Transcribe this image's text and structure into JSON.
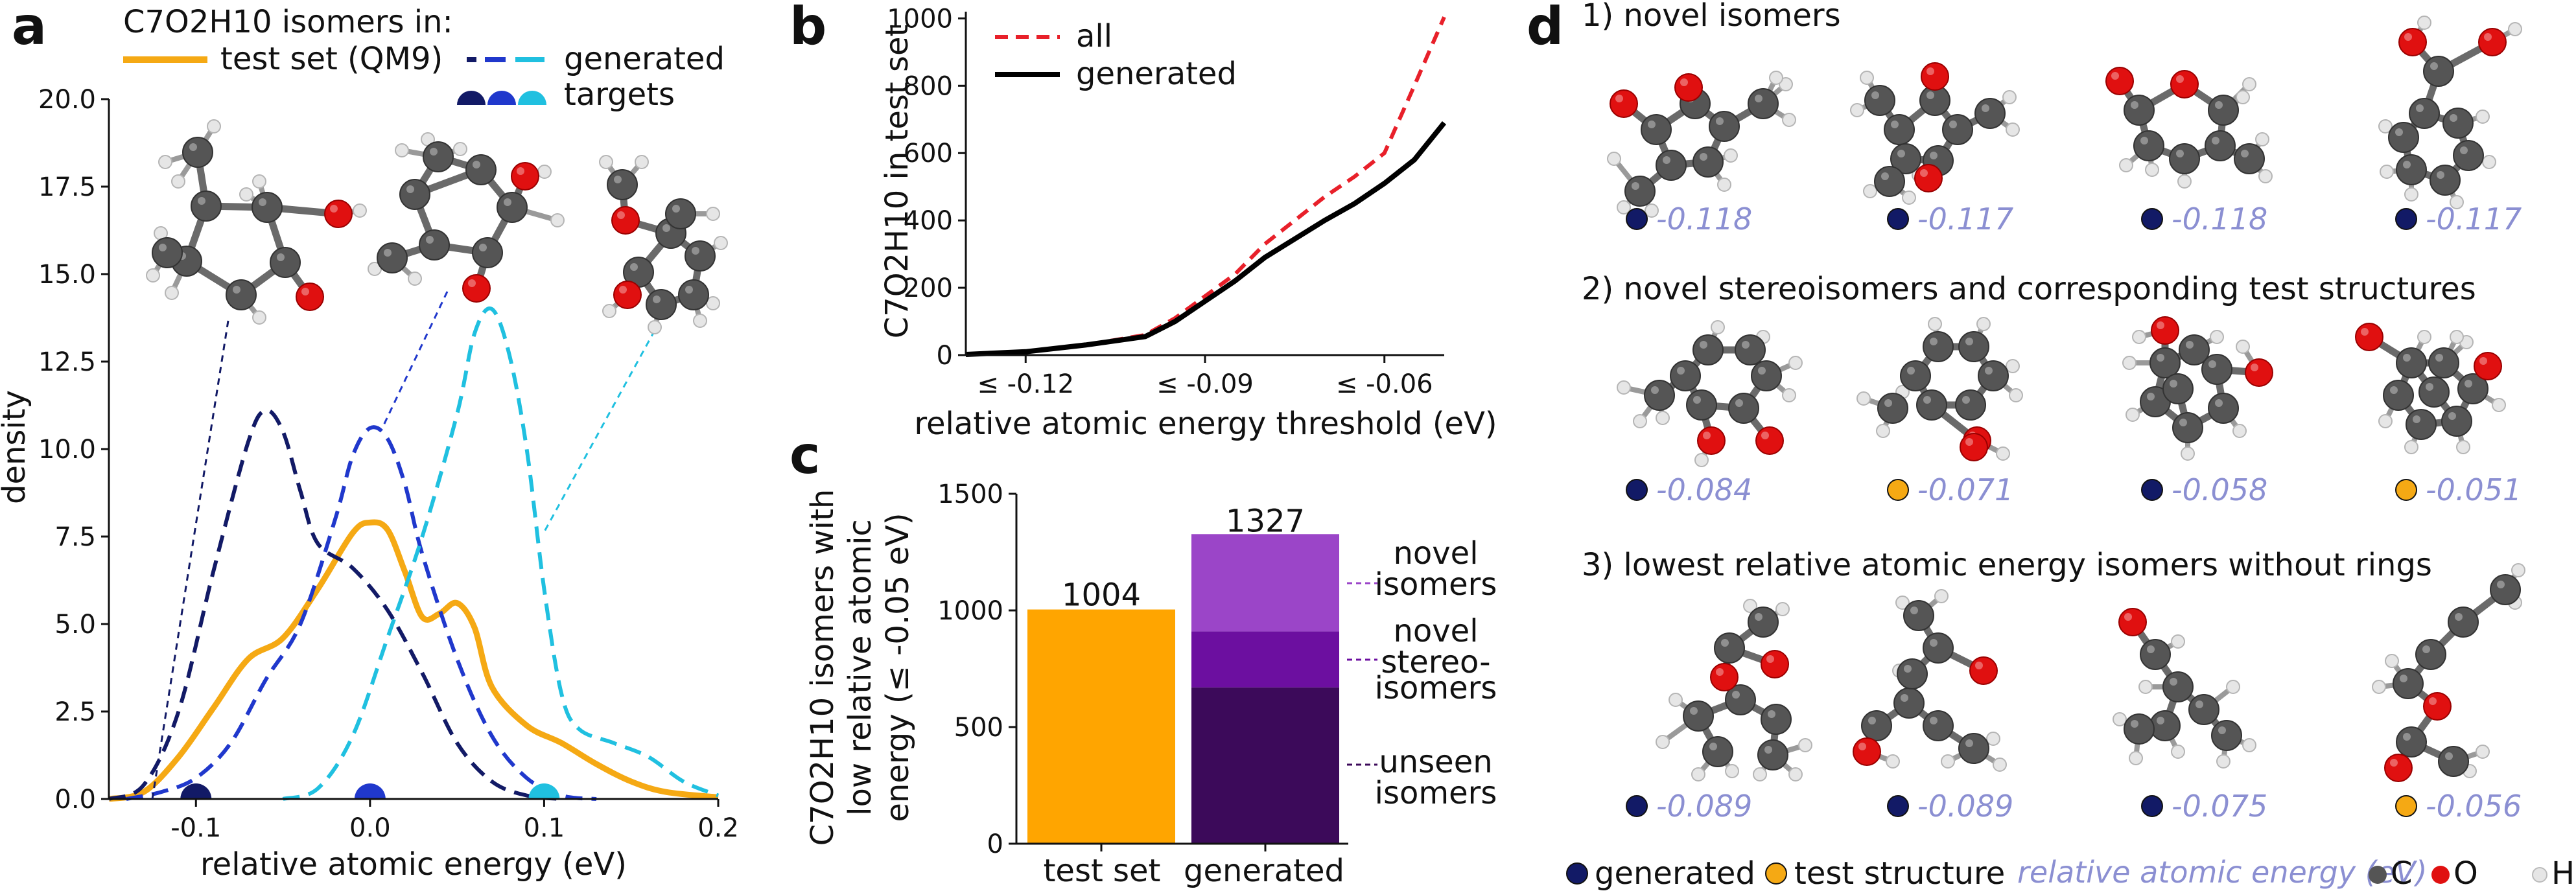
{
  "colors": {
    "test": "#f5a914",
    "t1": "#121a66",
    "t2": "#2038cc",
    "t3": "#20c0e0",
    "all": "#e8202a",
    "gen": "#000000",
    "gen_dot": "#121a66",
    "test_dot": "#f5a914",
    "energy": "#8b8fd2",
    "C": "#555555",
    "O": "#e01010",
    "H": "#e6e6e6",
    "bar_test": "#ffa500",
    "bar_novel": "#9b45c8",
    "bar_stereo": "#6c0fa0",
    "bar_unseen": "#3c0a5a"
  },
  "panel_a": {
    "letter": "a",
    "legend_title": "C7O2H10 isomers in:",
    "legend_items": [
      "test set (QM9)",
      "generated",
      "targets"
    ],
    "xlabel": "relative atomic energy (eV)",
    "ylabel": "density",
    "xticks": [
      "-0.1",
      "0.0",
      "0.1",
      "0.2"
    ],
    "yticks": [
      "0.0",
      "2.5",
      "5.0",
      "7.5",
      "10.0",
      "12.5",
      "15.0",
      "17.5",
      "20.0"
    ]
  },
  "panel_b": {
    "letter": "b",
    "ylabel": "C7O2H10 in test set",
    "xlabel": "relative atomic energy threshold (eV)",
    "xticks": [
      "≤ -0.12",
      "≤ -0.09",
      "≤ -0.06"
    ],
    "yticks": [
      "0",
      "200",
      "400",
      "600",
      "800",
      "1000"
    ],
    "legend": [
      "all",
      "generated"
    ]
  },
  "panel_c": {
    "letter": "c",
    "ylabel": [
      "C7O2H10 isomers with",
      "low relative atomic",
      "energy (≤ -0.05 eV)"
    ],
    "yticks": [
      "0",
      "500",
      "1000",
      "1500"
    ],
    "categories": [
      "test set",
      "generated"
    ],
    "value_labels": [
      "1004",
      "1327"
    ],
    "segment_labels": [
      [
        "novel",
        "isomers"
      ],
      [
        "novel",
        "stereo-",
        "isomers"
      ],
      [
        "unseen",
        "isomers"
      ]
    ]
  },
  "panel_d": {
    "letter": "d",
    "section1": "1) novel isomers",
    "section2": "2) novel stereoisomers and corresponding test structures",
    "section3": "3) lowest relative atomic energy isomers without rings",
    "row1_energies": [
      "-0.118",
      "-0.117",
      "-0.118",
      "-0.117"
    ],
    "row2_energies": [
      "-0.084",
      "-0.071",
      "-0.058",
      "-0.051"
    ],
    "row3_energies": [
      "-0.089",
      "-0.089",
      "-0.075",
      "-0.056"
    ],
    "legend_generated": "generated",
    "legend_test": "test structure",
    "legend_energy": "relative atomic energy (eV)",
    "legend_atoms": [
      "C",
      "O",
      "H"
    ]
  },
  "chart_data": [
    {
      "type": "line",
      "title": "",
      "xlabel": "relative atomic energy (eV)",
      "ylabel": "density",
      "xlim": [
        -0.15,
        0.2
      ],
      "ylim": [
        0,
        20
      ],
      "series": [
        {
          "name": "test set (QM9)",
          "style": "solid",
          "x": [
            -0.15,
            -0.13,
            -0.11,
            -0.09,
            -0.07,
            -0.05,
            -0.03,
            -0.01,
            0.0,
            0.01,
            0.02,
            0.03,
            0.04,
            0.05,
            0.06,
            0.07,
            0.09,
            0.11,
            0.13,
            0.15,
            0.17,
            0.2
          ],
          "y": [
            0.0,
            0.2,
            1.2,
            2.6,
            4.0,
            4.6,
            6.0,
            7.6,
            7.9,
            7.7,
            6.5,
            5.2,
            5.3,
            5.6,
            4.9,
            3.2,
            2.1,
            1.6,
            1.0,
            0.5,
            0.2,
            0.05
          ]
        },
        {
          "name": "generated (target -0.1)",
          "style": "dashed",
          "color_key": "t1",
          "x": [
            -0.15,
            -0.13,
            -0.11,
            -0.09,
            -0.07,
            -0.06,
            -0.05,
            -0.04,
            -0.03,
            -0.01,
            0.01,
            0.03,
            0.05,
            0.07,
            0.09,
            0.11
          ],
          "y": [
            0.0,
            0.4,
            2.5,
            6.5,
            10.2,
            11.1,
            10.5,
            8.8,
            7.3,
            6.6,
            5.4,
            3.6,
            1.6,
            0.5,
            0.1,
            0.0
          ]
        },
        {
          "name": "generated (target 0.0)",
          "style": "dashed",
          "color_key": "t2",
          "x": [
            -0.14,
            -0.12,
            -0.1,
            -0.08,
            -0.06,
            -0.04,
            -0.02,
            -0.01,
            0.0,
            0.01,
            0.02,
            0.03,
            0.05,
            0.07,
            0.09,
            0.11,
            0.13
          ],
          "y": [
            0.0,
            0.2,
            0.6,
            1.6,
            3.4,
            5.0,
            8.0,
            9.8,
            10.6,
            10.3,
            9.0,
            7.0,
            4.0,
            1.8,
            0.6,
            0.1,
            0.0
          ]
        },
        {
          "name": "generated (target 0.1)",
          "style": "dashed",
          "color_key": "t3",
          "x": [
            -0.05,
            -0.03,
            -0.01,
            0.01,
            0.03,
            0.05,
            0.06,
            0.07,
            0.08,
            0.09,
            0.1,
            0.11,
            0.12,
            0.14,
            0.16,
            0.18,
            0.2
          ],
          "y": [
            0.0,
            0.3,
            1.8,
            4.6,
            7.5,
            11.0,
            13.3,
            14.0,
            12.7,
            10.0,
            6.0,
            3.0,
            2.0,
            1.6,
            1.2,
            0.5,
            0.1
          ]
        }
      ],
      "targets": [
        -0.1,
        0.0,
        0.1
      ]
    },
    {
      "type": "line",
      "title": "",
      "xlabel": "relative atomic energy threshold (eV)",
      "ylabel": "C7O2H10 in test set",
      "xlim": [
        -0.13,
        -0.05
      ],
      "ylim": [
        0,
        1020
      ],
      "series": [
        {
          "name": "all",
          "style": "dashed",
          "x": [
            -0.13,
            -0.12,
            -0.11,
            -0.1,
            -0.095,
            -0.09,
            -0.085,
            -0.08,
            -0.075,
            -0.07,
            -0.065,
            -0.06,
            -0.055,
            -0.05
          ],
          "y": [
            2,
            10,
            30,
            60,
            110,
            175,
            240,
            330,
            400,
            470,
            530,
            600,
            800,
            1004
          ]
        },
        {
          "name": "generated",
          "style": "solid",
          "x": [
            -0.13,
            -0.12,
            -0.11,
            -0.1,
            -0.095,
            -0.09,
            -0.085,
            -0.08,
            -0.075,
            -0.07,
            -0.065,
            -0.06,
            -0.055,
            -0.05
          ],
          "y": [
            2,
            10,
            30,
            55,
            100,
            160,
            220,
            290,
            345,
            400,
            450,
            510,
            580,
            690
          ]
        }
      ]
    },
    {
      "type": "bar",
      "title": "",
      "ylabel": "C7O2H10 isomers with low relative atomic energy (≤ -0.05 eV)",
      "categories": [
        "test set",
        "generated"
      ],
      "ylim": [
        0,
        1500
      ],
      "series": [
        {
          "name": "test set",
          "values": [
            1004,
            0
          ]
        },
        {
          "name": "unseen isomers",
          "values": [
            0,
            670
          ]
        },
        {
          "name": "novel stereoisomers",
          "values": [
            0,
            240
          ]
        },
        {
          "name": "novel isomers",
          "values": [
            0,
            417
          ]
        }
      ],
      "totals": [
        1004,
        1327
      ]
    }
  ]
}
